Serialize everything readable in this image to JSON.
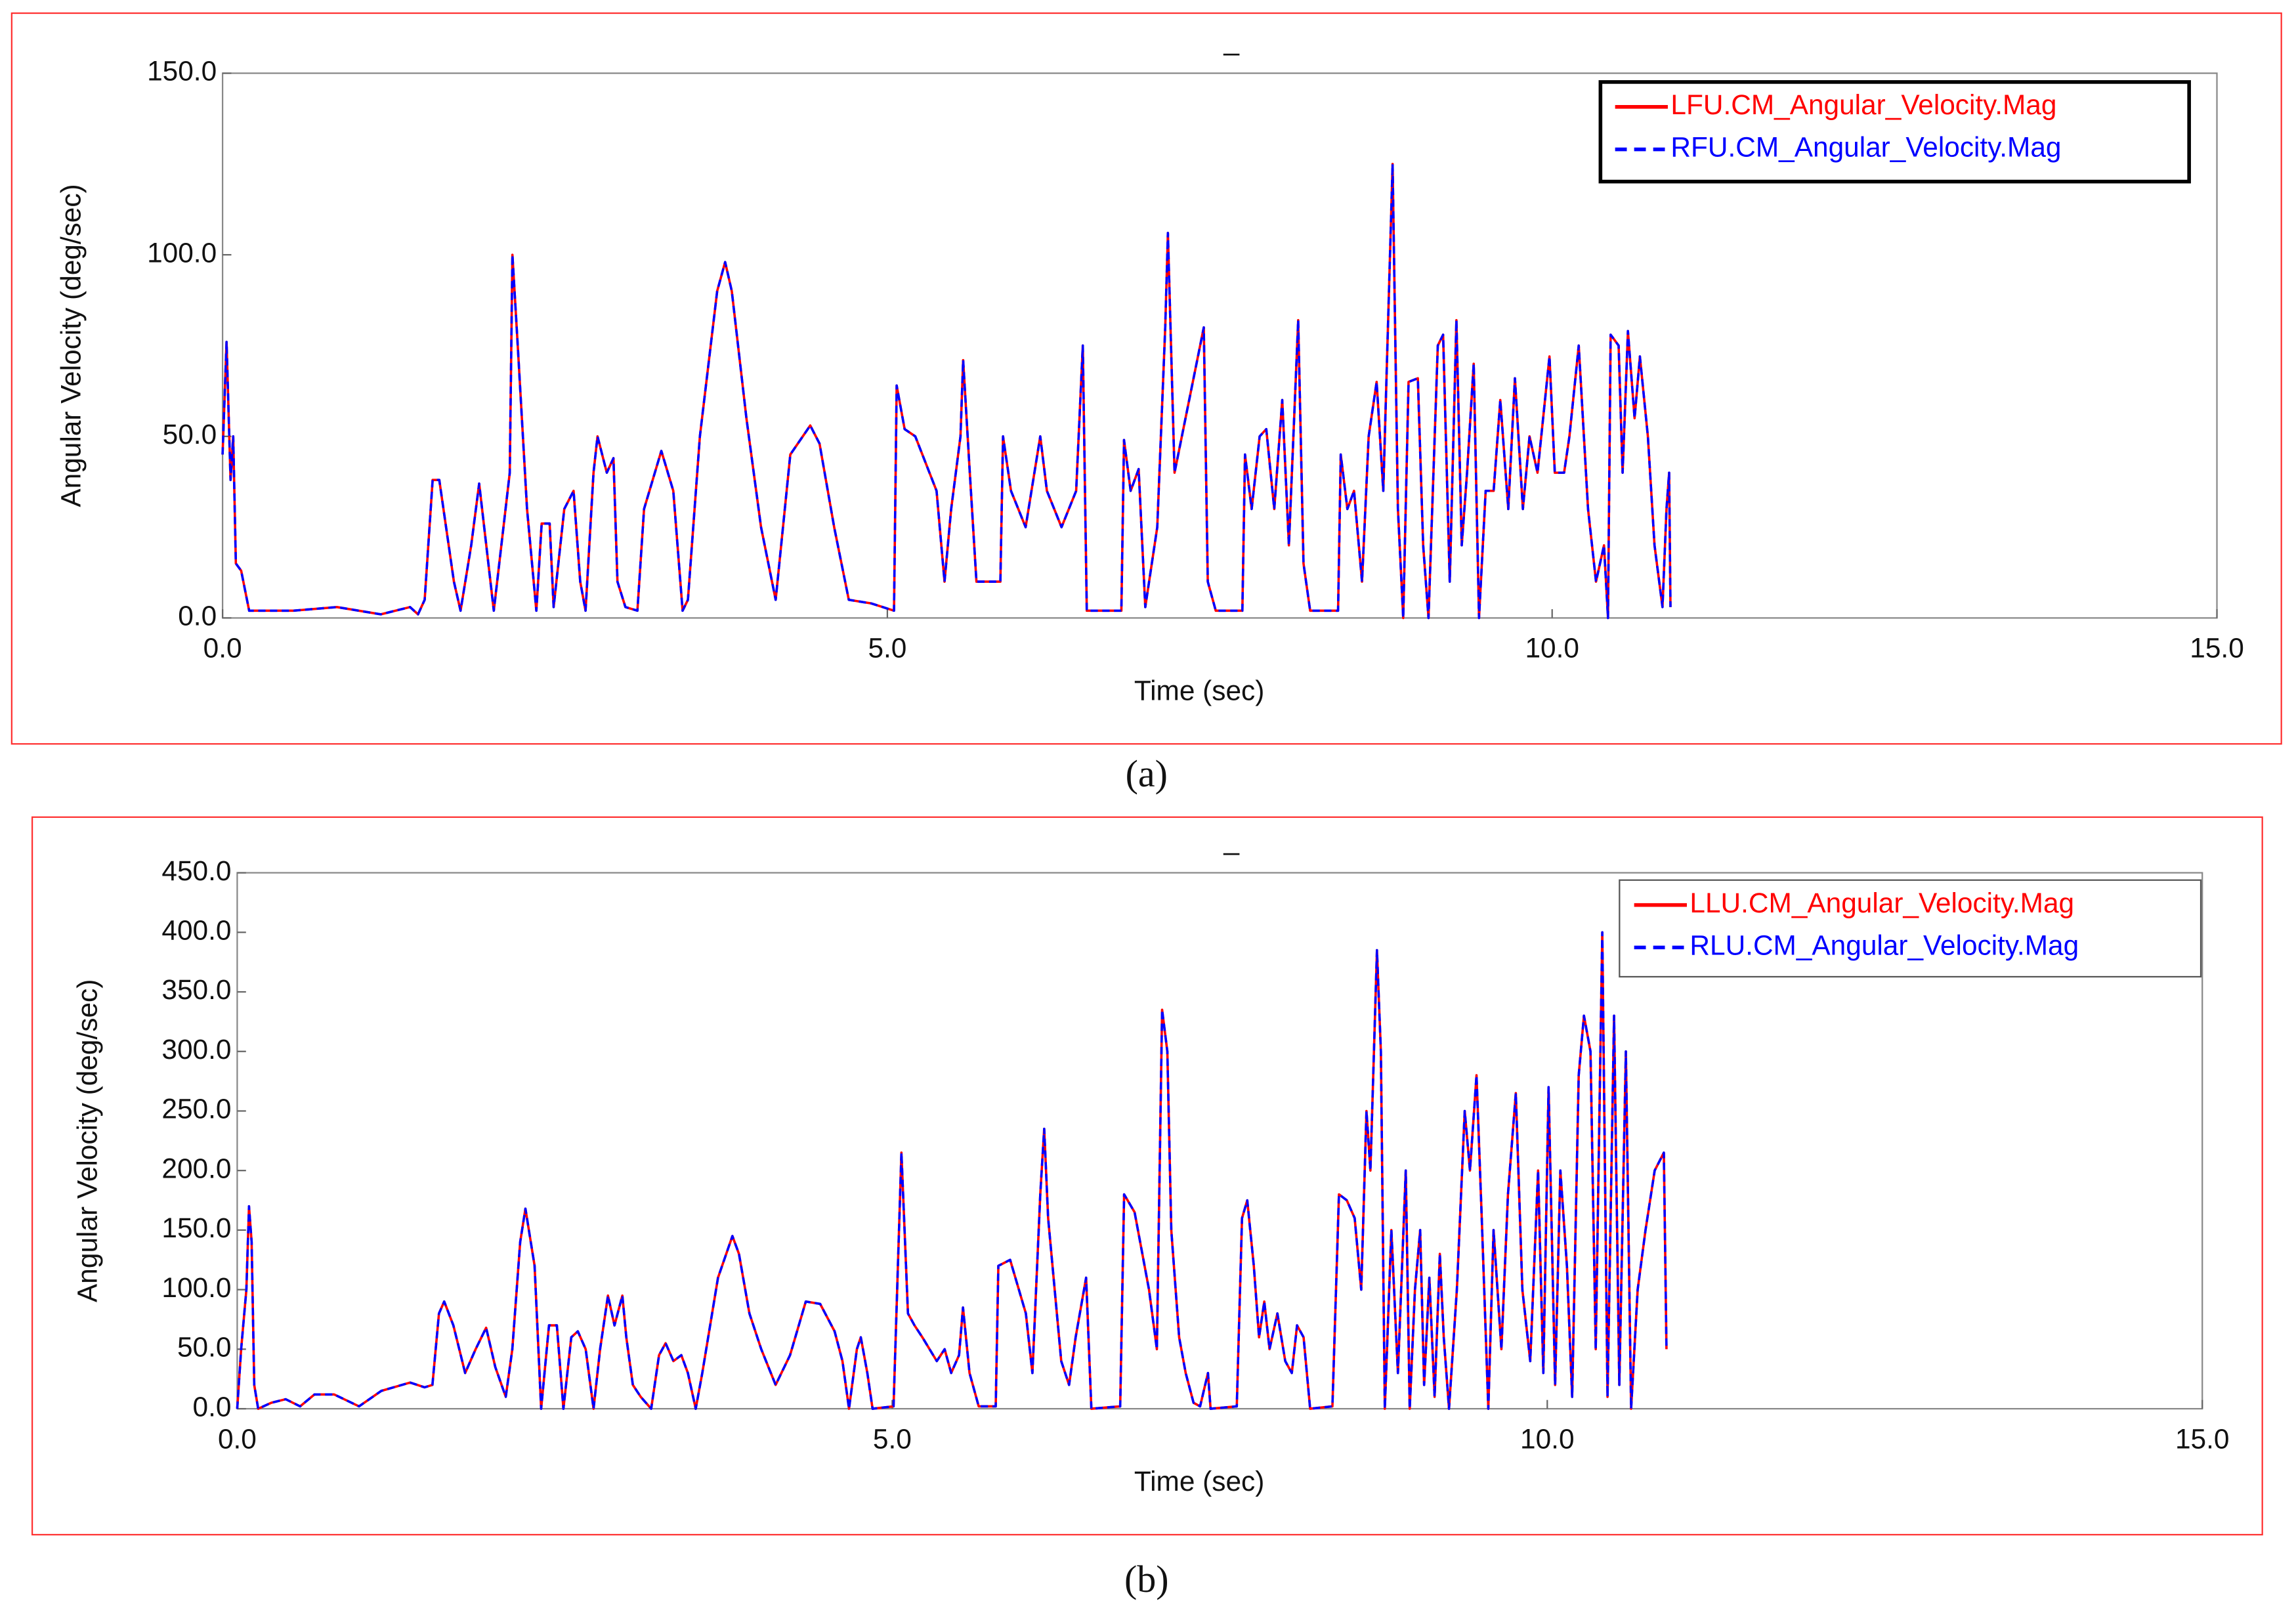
{
  "chart_data": [
    {
      "type": "line",
      "title": "_",
      "xlabel": "Time (sec)",
      "ylabel": "Angular Velocity (deg/sec)",
      "caption": "(a)",
      "x": [
        0.0,
        0.03,
        0.06,
        0.08,
        0.1,
        0.14,
        0.2,
        0.53,
        0.86,
        1.19,
        1.41,
        1.47,
        1.52,
        1.58,
        1.63,
        1.74,
        1.79,
        1.87,
        1.93,
        2.04,
        2.16,
        2.18,
        2.22,
        2.29,
        2.36,
        2.4,
        2.46,
        2.49,
        2.57,
        2.64,
        2.69,
        2.73,
        2.79,
        2.82,
        2.89,
        2.94,
        2.97,
        3.03,
        3.12,
        3.17,
        3.3,
        3.39,
        3.46,
        3.5,
        3.59,
        3.72,
        3.78,
        3.83,
        3.94,
        4.05,
        4.16,
        4.27,
        4.42,
        4.49,
        4.6,
        4.71,
        4.88,
        5.05,
        5.07,
        5.13,
        5.21,
        5.37,
        5.43,
        5.48,
        5.55,
        5.57,
        5.62,
        5.67,
        5.85,
        5.87,
        5.93,
        6.04,
        6.15,
        6.2,
        6.31,
        6.42,
        6.47,
        6.5,
        6.76,
        6.78,
        6.83,
        6.89,
        6.94,
        7.03,
        7.09,
        7.11,
        7.16,
        7.38,
        7.41,
        7.47,
        7.67,
        7.69,
        7.74,
        7.8,
        7.85,
        7.91,
        7.97,
        8.02,
        8.09,
        8.13,
        8.18,
        8.39,
        8.41,
        8.46,
        8.51,
        8.57,
        8.62,
        8.68,
        8.73,
        8.8,
        8.84,
        8.88,
        8.92,
        8.99,
        9.03,
        9.07,
        9.14,
        9.18,
        9.23,
        9.28,
        9.32,
        9.36,
        9.41,
        9.45,
        9.5,
        9.56,
        9.61,
        9.67,
        9.72,
        9.78,
        9.83,
        9.89,
        9.98,
        10.02,
        10.09,
        10.13,
        10.2,
        10.27,
        10.33,
        10.39,
        10.42,
        10.44,
        10.5,
        10.53,
        10.57,
        10.62,
        10.66,
        10.72,
        10.77,
        10.83,
        10.86,
        10.88,
        10.89
      ],
      "series": [
        {
          "name": "LFU.CM_Angular_Velocity.Mag",
          "color": "#ff0000",
          "linestyle": "solid",
          "values": [
            45,
            76,
            38,
            50,
            15,
            13,
            2,
            2,
            3,
            1,
            3,
            1,
            5,
            38,
            38,
            10,
            2,
            20,
            37,
            2,
            40,
            100,
            75,
            30,
            2,
            26,
            26,
            3,
            30,
            35,
            10,
            2,
            40,
            50,
            40,
            44,
            10,
            3,
            2,
            30,
            46,
            35,
            2,
            5,
            50,
            90,
            98,
            90,
            55,
            25,
            5,
            45,
            53,
            48,
            25,
            5,
            4,
            2,
            64,
            52,
            50,
            35,
            10,
            30,
            50,
            71,
            40,
            10,
            10,
            50,
            35,
            25,
            50,
            35,
            25,
            35,
            75,
            2,
            2,
            49,
            35,
            41,
            3,
            25,
            80,
            106,
            40,
            80,
            10,
            2,
            2,
            45,
            30,
            50,
            52,
            30,
            60,
            20,
            82,
            15,
            2,
            2,
            45,
            30,
            35,
            10,
            50,
            65,
            35,
            125,
            30,
            0,
            65,
            66,
            20,
            0,
            75,
            78,
            10,
            82,
            20,
            40,
            70,
            0,
            35,
            35,
            60,
            30,
            66,
            30,
            50,
            40,
            72,
            40,
            40,
            50,
            75,
            30,
            10,
            20,
            0,
            78,
            75,
            40,
            79,
            55,
            72,
            50,
            20,
            3,
            30,
            40,
            3
          ]
        },
        {
          "name": "RFU.CM_Angular_Velocity.Mag",
          "color": "#0000ff",
          "linestyle": "dashed",
          "values": [
            45,
            76,
            38,
            50,
            15,
            13,
            2,
            2,
            3,
            1,
            3,
            1,
            5,
            38,
            38,
            10,
            2,
            20,
            37,
            2,
            40,
            100,
            75,
            30,
            2,
            26,
            26,
            3,
            30,
            35,
            10,
            2,
            40,
            50,
            40,
            44,
            10,
            3,
            2,
            30,
            46,
            35,
            2,
            5,
            50,
            90,
            98,
            90,
            55,
            25,
            5,
            45,
            53,
            48,
            25,
            5,
            4,
            2,
            64,
            52,
            50,
            35,
            10,
            30,
            50,
            71,
            40,
            10,
            10,
            50,
            35,
            25,
            50,
            35,
            25,
            35,
            75,
            2,
            2,
            49,
            35,
            41,
            3,
            25,
            80,
            106,
            40,
            80,
            10,
            2,
            2,
            45,
            30,
            50,
            52,
            30,
            60,
            20,
            82,
            15,
            2,
            2,
            45,
            30,
            35,
            10,
            50,
            65,
            35,
            125,
            30,
            0,
            65,
            66,
            20,
            0,
            75,
            78,
            10,
            82,
            20,
            40,
            70,
            0,
            35,
            35,
            60,
            30,
            66,
            30,
            50,
            40,
            72,
            40,
            40,
            50,
            75,
            30,
            10,
            20,
            0,
            78,
            75,
            40,
            79,
            55,
            72,
            50,
            20,
            3,
            30,
            40,
            3
          ]
        }
      ],
      "xlim": [
        0,
        15
      ],
      "ylim": [
        0,
        150
      ],
      "xticks": [
        {
          "value": 0,
          "label": "0.0"
        },
        {
          "value": 5,
          "label": "5.0"
        },
        {
          "value": 10,
          "label": "10.0"
        },
        {
          "value": 15,
          "label": "15.0"
        }
      ],
      "yticks": [
        {
          "value": 0,
          "label": "0.0"
        },
        {
          "value": 50,
          "label": "50.0"
        },
        {
          "value": 100,
          "label": "100.0"
        },
        {
          "value": 150,
          "label": "150.0"
        }
      ],
      "legend": "upper right",
      "grid": false
    },
    {
      "type": "line",
      "title": "_",
      "xlabel": "Time (sec)",
      "ylabel": "Angular Velocity (deg/sec)",
      "caption": "(b)",
      "x": [
        0.0,
        0.03,
        0.07,
        0.09,
        0.11,
        0.13,
        0.16,
        0.26,
        0.37,
        0.48,
        0.59,
        0.74,
        0.93,
        1.1,
        1.32,
        1.43,
        1.49,
        1.54,
        1.58,
        1.65,
        1.74,
        1.82,
        1.9,
        1.97,
        2.05,
        2.1,
        2.16,
        2.2,
        2.27,
        2.32,
        2.38,
        2.44,
        2.49,
        2.55,
        2.6,
        2.66,
        2.72,
        2.77,
        2.83,
        2.88,
        2.94,
        2.97,
        3.02,
        3.08,
        3.16,
        3.22,
        3.27,
        3.33,
        3.39,
        3.44,
        3.5,
        3.55,
        3.67,
        3.78,
        3.83,
        3.91,
        4.0,
        4.11,
        4.22,
        4.34,
        4.45,
        4.56,
        4.62,
        4.67,
        4.73,
        4.76,
        4.81,
        4.85,
        5.01,
        5.07,
        5.12,
        5.17,
        5.23,
        5.34,
        5.4,
        5.45,
        5.51,
        5.54,
        5.59,
        5.66,
        5.79,
        5.81,
        5.9,
        6.02,
        6.07,
        6.13,
        6.16,
        6.19,
        6.24,
        6.29,
        6.35,
        6.4,
        6.48,
        6.52,
        6.74,
        6.77,
        6.85,
        6.96,
        7.02,
        7.06,
        7.1,
        7.13,
        7.19,
        7.24,
        7.3,
        7.35,
        7.41,
        7.43,
        7.63,
        7.67,
        7.71,
        7.76,
        7.8,
        7.84,
        7.88,
        7.94,
        8.0,
        8.05,
        8.09,
        8.14,
        8.19,
        8.36,
        8.41,
        8.47,
        8.53,
        8.58,
        8.62,
        8.65,
        8.7,
        8.73,
        8.76,
        8.81,
        8.86,
        8.92,
        8.95,
        8.99,
        9.03,
        9.06,
        9.1,
        9.14,
        9.18,
        9.21,
        9.25,
        9.31,
        9.37,
        9.41,
        9.46,
        9.5,
        9.55,
        9.59,
        9.65,
        9.7,
        9.76,
        9.81,
        9.87,
        9.93,
        9.97,
        10.01,
        10.06,
        10.1,
        10.15,
        10.19,
        10.24,
        10.28,
        10.33,
        10.37,
        10.42,
        10.46,
        10.51,
        10.55,
        10.6,
        10.64,
        10.69,
        10.75,
        10.82,
        10.89,
        10.91
      ],
      "series": [
        {
          "name": "LLU.CM_Angular_Velocity.Mag",
          "color": "#ff0000",
          "linestyle": "solid",
          "values": [
            0,
            50,
            100,
            170,
            140,
            20,
            0,
            5,
            8,
            2,
            12,
            12,
            2,
            15,
            22,
            18,
            20,
            80,
            90,
            70,
            30,
            50,
            68,
            35,
            10,
            50,
            140,
            168,
            120,
            0,
            70,
            70,
            0,
            60,
            65,
            50,
            0,
            50,
            95,
            70,
            95,
            60,
            20,
            10,
            0,
            45,
            55,
            40,
            45,
            30,
            0,
            30,
            110,
            145,
            130,
            80,
            50,
            20,
            45,
            90,
            88,
            65,
            40,
            0,
            50,
            60,
            30,
            0,
            2,
            215,
            80,
            70,
            60,
            40,
            50,
            30,
            45,
            85,
            30,
            2,
            2,
            120,
            125,
            80,
            30,
            180,
            235,
            160,
            100,
            40,
            20,
            60,
            110,
            0,
            2,
            180,
            165,
            100,
            50,
            335,
            300,
            150,
            60,
            30,
            5,
            2,
            30,
            0,
            2,
            160,
            175,
            120,
            60,
            90,
            50,
            80,
            40,
            30,
            70,
            60,
            0,
            2,
            180,
            175,
            160,
            100,
            250,
            200,
            385,
            300,
            0,
            150,
            30,
            200,
            0,
            100,
            150,
            20,
            110,
            10,
            130,
            60,
            0,
            100,
            250,
            200,
            280,
            160,
            0,
            150,
            50,
            180,
            265,
            100,
            40,
            200,
            30,
            270,
            20,
            200,
            120,
            10,
            280,
            330,
            300,
            50,
            400,
            10,
            330,
            20,
            300,
            0,
            100,
            150,
            200,
            215,
            50
          ]
        },
        {
          "name": "RLU.CM_Angular_Velocity.Mag",
          "color": "#0000ff",
          "linestyle": "dashed",
          "values": [
            0,
            50,
            100,
            170,
            140,
            20,
            0,
            5,
            8,
            2,
            12,
            12,
            2,
            15,
            22,
            18,
            20,
            80,
            90,
            70,
            30,
            50,
            68,
            35,
            10,
            50,
            140,
            168,
            120,
            0,
            70,
            70,
            0,
            60,
            65,
            50,
            0,
            50,
            95,
            70,
            95,
            60,
            20,
            10,
            0,
            45,
            55,
            40,
            45,
            30,
            0,
            30,
            110,
            145,
            130,
            80,
            50,
            20,
            45,
            90,
            88,
            65,
            40,
            0,
            50,
            60,
            30,
            0,
            2,
            215,
            80,
            70,
            60,
            40,
            50,
            30,
            45,
            85,
            30,
            2,
            2,
            120,
            125,
            80,
            30,
            180,
            235,
            160,
            100,
            40,
            20,
            60,
            110,
            0,
            2,
            180,
            165,
            100,
            50,
            335,
            300,
            150,
            60,
            30,
            5,
            2,
            30,
            0,
            2,
            160,
            175,
            120,
            60,
            90,
            50,
            80,
            40,
            30,
            70,
            60,
            0,
            2,
            180,
            175,
            160,
            100,
            250,
            200,
            385,
            300,
            0,
            150,
            30,
            200,
            0,
            100,
            150,
            20,
            110,
            10,
            130,
            60,
            0,
            100,
            250,
            200,
            280,
            160,
            0,
            150,
            50,
            180,
            265,
            100,
            40,
            200,
            30,
            270,
            20,
            200,
            120,
            10,
            280,
            330,
            300,
            50,
            400,
            10,
            330,
            20,
            300,
            0,
            100,
            150,
            200,
            215,
            50
          ]
        }
      ],
      "xlim": [
        0,
        15
      ],
      "ylim": [
        0,
        450
      ],
      "xticks": [
        {
          "value": 0,
          "label": "0.0"
        },
        {
          "value": 5,
          "label": "5.0"
        },
        {
          "value": 10,
          "label": "10.0"
        },
        {
          "value": 15,
          "label": "15.0"
        }
      ],
      "yticks": [
        {
          "value": 0,
          "label": "0.0"
        },
        {
          "value": 50,
          "label": "50.0"
        },
        {
          "value": 100,
          "label": "100.0"
        },
        {
          "value": 150,
          "label": "150.0"
        },
        {
          "value": 200,
          "label": "200.0"
        },
        {
          "value": 250,
          "label": "250.0"
        },
        {
          "value": 300,
          "label": "300.0"
        },
        {
          "value": 350,
          "label": "350.0"
        },
        {
          "value": 400,
          "label": "400.0"
        },
        {
          "value": 450,
          "label": "450.0"
        }
      ],
      "legend": "upper right",
      "grid": false
    }
  ]
}
